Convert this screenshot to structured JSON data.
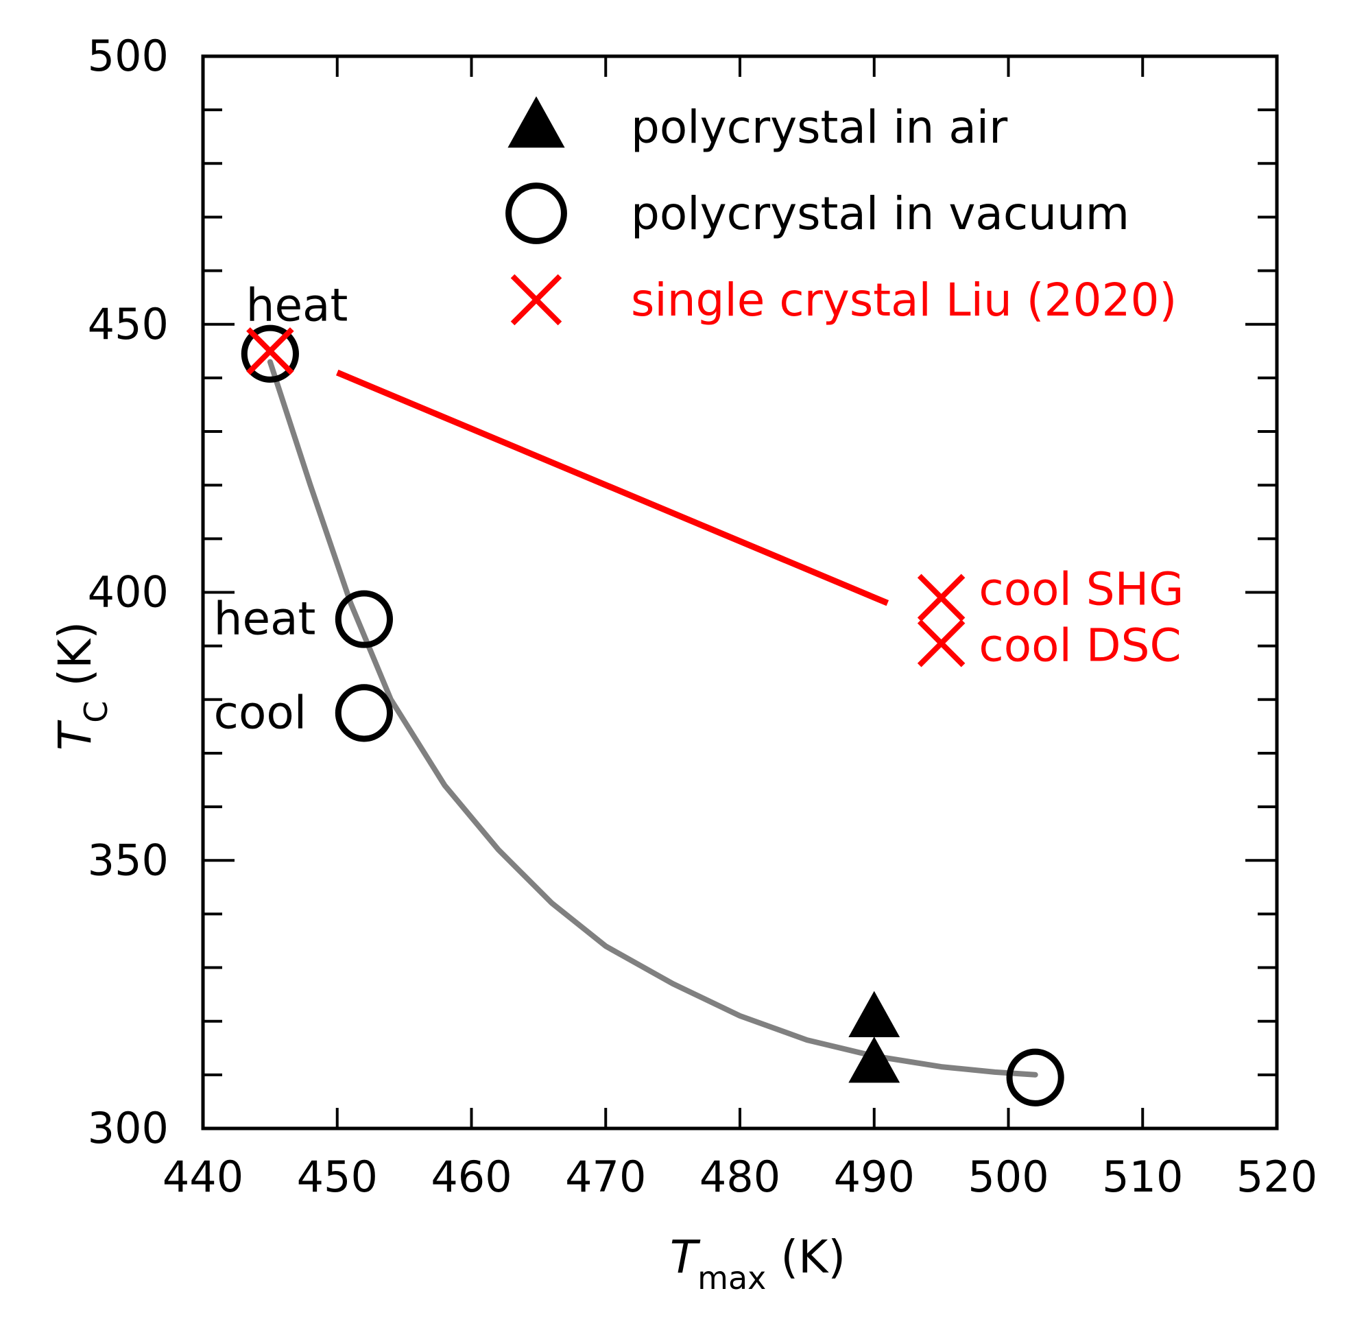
{
  "chart_data": {
    "type": "scatter",
    "title": "",
    "xlabel": {
      "main": "T",
      "sub": "max",
      "unit": " (K)"
    },
    "ylabel": {
      "main": "T",
      "sub": "C",
      "unit": " (K)"
    },
    "xlim": [
      440,
      520
    ],
    "ylim": [
      300,
      500
    ],
    "x_ticks": [
      440,
      450,
      460,
      470,
      480,
      490,
      500,
      510,
      520
    ],
    "y_ticks": [
      300,
      350,
      400,
      450,
      500
    ],
    "x_minor_step": 10,
    "y_minor_step": 10,
    "grid": false,
    "legend_position": "top-right",
    "series": [
      {
        "name": "polycrystal in air",
        "marker": "triangle",
        "color": "#000000",
        "points": [
          {
            "x": 490,
            "y": 320.5
          },
          {
            "x": 490,
            "y": 312
          }
        ]
      },
      {
        "name": "polycrystal in vacuum",
        "marker": "circle-open",
        "color": "#000000",
        "points": [
          {
            "x": 445,
            "y": 444.5
          },
          {
            "x": 452,
            "y": 395
          },
          {
            "x": 452,
            "y": 377.5
          },
          {
            "x": 502,
            "y": 309.5
          }
        ]
      },
      {
        "name": "single crystal  Liu (2020)",
        "marker": "x",
        "color": "#ff0000",
        "points": [
          {
            "x": 445,
            "y": 445
          },
          {
            "x": 495,
            "y": 399
          },
          {
            "x": 495,
            "y": 390.5
          }
        ]
      }
    ],
    "fit_curve": {
      "color": "#808080",
      "points": [
        [
          445,
          443
        ],
        [
          448,
          420
        ],
        [
          451,
          398
        ],
        [
          454,
          380
        ],
        [
          458,
          364
        ],
        [
          462,
          352
        ],
        [
          466,
          342
        ],
        [
          470,
          334
        ],
        [
          475,
          327
        ],
        [
          480,
          321
        ],
        [
          485,
          316.5
        ],
        [
          490,
          313.5
        ],
        [
          495,
          311.5
        ],
        [
          499,
          310.5
        ],
        [
          502,
          310
        ]
      ]
    },
    "trend_line": {
      "color": "#ff0000",
      "from": [
        450,
        441
      ],
      "to": [
        491,
        398
      ]
    },
    "annotations": [
      {
        "text": "heat",
        "x": 443.2,
        "y": 453.5,
        "color": "#000000"
      },
      {
        "text": "heat",
        "x": 440.8,
        "y": 395,
        "color": "#000000"
      },
      {
        "text": "cool",
        "x": 440.8,
        "y": 377.5,
        "color": "#000000"
      },
      {
        "text": "cool SHG",
        "x": 497.8,
        "y": 400.5,
        "color": "#ff0000"
      },
      {
        "text": "cool DSC",
        "x": 497.8,
        "y": 390,
        "color": "#ff0000"
      }
    ]
  }
}
